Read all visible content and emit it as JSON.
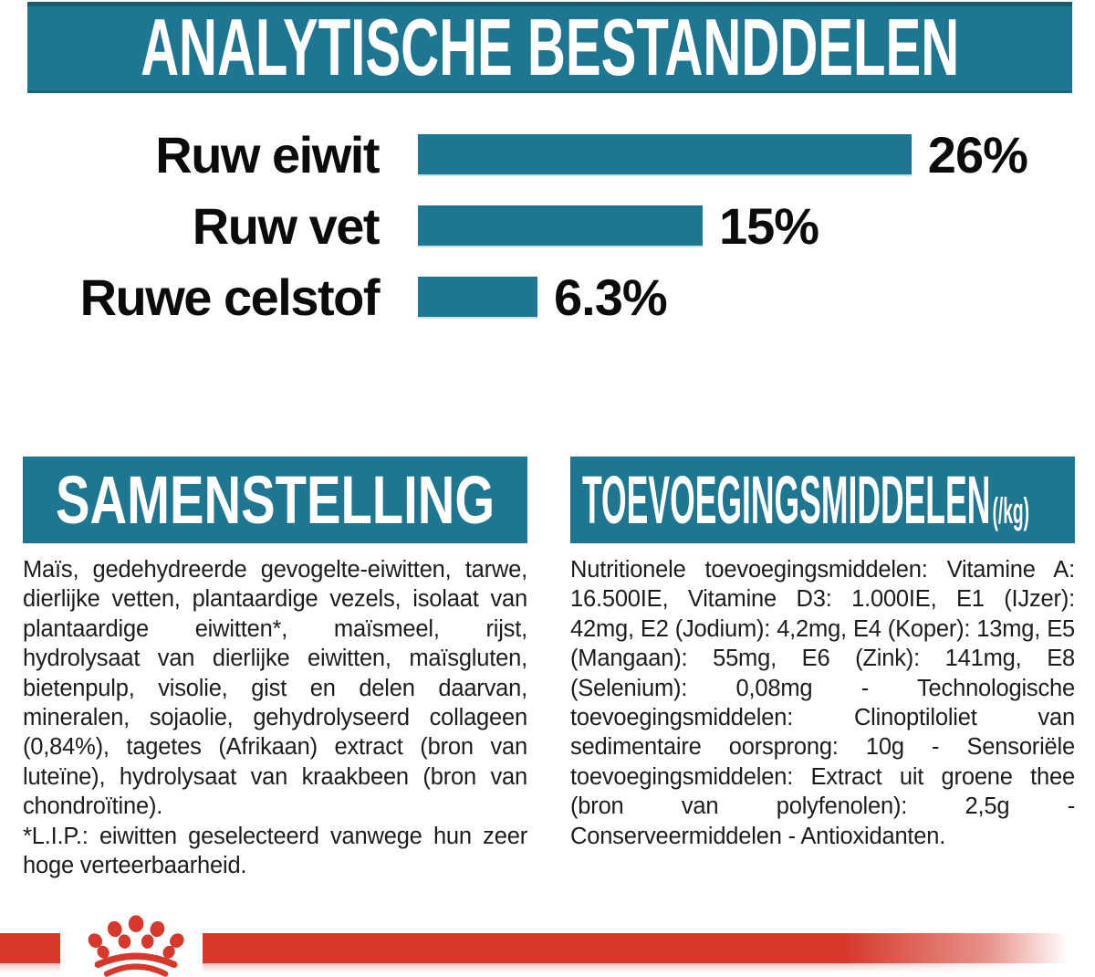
{
  "colors": {
    "teal": "#1E7690",
    "red": "#D6392C",
    "text": "#1C1C1C",
    "background": "#FFFFFF"
  },
  "analytics": {
    "title": "ANALYTISCHE BESTANDDELEN"
  },
  "chart_data": {
    "type": "bar",
    "orientation": "horizontal",
    "title": "ANALYTISCHE BESTANDDELEN",
    "categories": [
      "Ruw eiwit",
      "Ruw vet",
      "Ruwe celstof"
    ],
    "values": [
      26,
      15,
      6.3
    ],
    "value_labels": [
      "26%",
      "15%",
      "6.3%"
    ],
    "unit": "%",
    "xlabel": "",
    "ylabel": "",
    "xlim": [
      0,
      28
    ],
    "grid": false,
    "legend": false,
    "bar_color": "#1E7690",
    "value_label_position": "right-of-bar"
  },
  "composition": {
    "title": "SAMENSTELLING",
    "paragraphs": [
      "Maïs, gedehydreerde gevogelte-eiwitten, tarwe, dierlijke vetten, plantaardige vezels, isolaat van plantaardige eiwitten*, maïsmeel, rijst, hydrolysaat van dierlijke eiwitten, maïsgluten, bietenpulp, visolie, gist en delen daarvan, mineralen, sojaolie, gehydrolyseerd collageen (0,84%), tagetes (Afrikaan) extract (bron van luteïne), hydrolysaat van kraakbeen (bron van chondroïtine).",
      "*L.I.P.: eiwitten geselecteerd vanwege hun zeer hoge verteerbaarheid."
    ]
  },
  "additives": {
    "title": "TOEVOEGINGSMIDDELEN",
    "title_suffix": "(/kg)",
    "paragraphs": [
      "Nutritionele toevoegingsmiddelen: Vitamine A: 16.500IE, Vitamine D3: 1.000IE, E1 (IJzer): 42mg, E2 (Jodium): 4,2mg, E4 (Koper): 13mg, E5 (Mangaan): 55mg, E6 (Zink): 141mg, E8 (Selenium): 0,08mg - Technologische toevoegingsmiddelen: Clinoptiloliet van sedimentaire oorsprong: 10g - Sensoriële toevoegingsmiddelen: Extract uit groene thee (bron van polyfenolen): 2,5g - Conserveermiddelen - Antioxidanten."
    ]
  },
  "footer": {
    "logo": "royal-canin-crown",
    "bar_color": "#D6392C"
  }
}
